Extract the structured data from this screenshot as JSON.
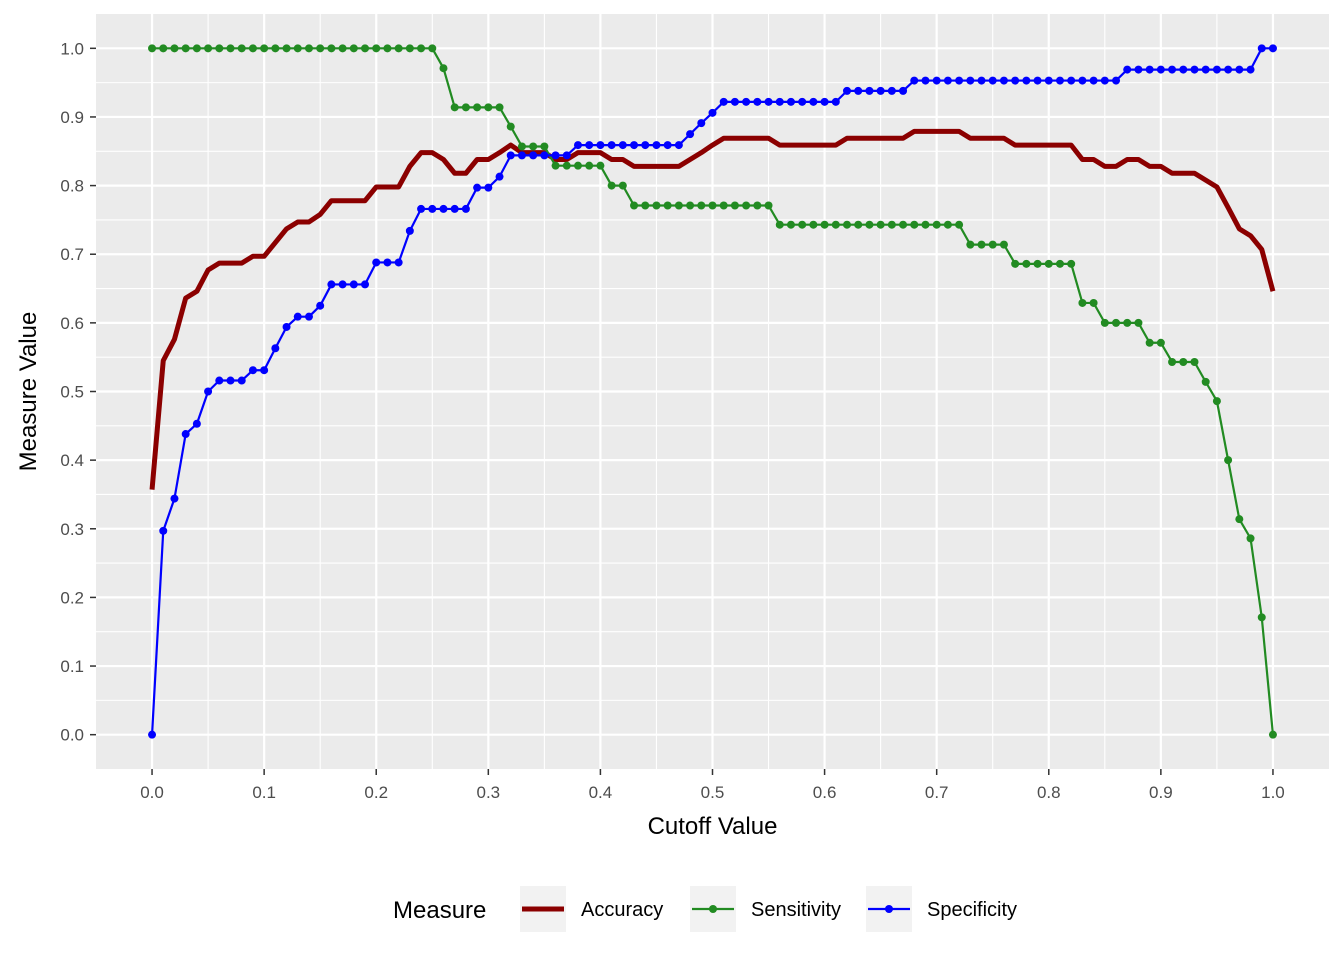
{
  "chart_data": {
    "type": "line",
    "title": "",
    "xlabel": "Cutoff Value",
    "ylabel": "Measure Value",
    "xlim": [
      -0.05,
      1.05
    ],
    "ylim": [
      -0.05,
      1.05
    ],
    "x_ticks": [
      "0.0",
      "0.1",
      "0.2",
      "0.3",
      "0.4",
      "0.5",
      "0.6",
      "0.7",
      "0.8",
      "0.9",
      "1.0"
    ],
    "y_ticks": [
      "0.0",
      "0.1",
      "0.2",
      "0.3",
      "0.4",
      "0.5",
      "0.6",
      "0.7",
      "0.8",
      "0.9",
      "1.0"
    ],
    "grid": true,
    "legend": {
      "title": "Measure",
      "position": "bottom"
    },
    "x": [
      0.0,
      0.01,
      0.02,
      0.03,
      0.04,
      0.05,
      0.06,
      0.07,
      0.08,
      0.09,
      0.1,
      0.11,
      0.12,
      0.13,
      0.14,
      0.15,
      0.16,
      0.17,
      0.18,
      0.19,
      0.2,
      0.21,
      0.22,
      0.23,
      0.24,
      0.25,
      0.26,
      0.27,
      0.28,
      0.29,
      0.3,
      0.31,
      0.32,
      0.33,
      0.34,
      0.35,
      0.36,
      0.37,
      0.38,
      0.39,
      0.4,
      0.41,
      0.42,
      0.43,
      0.44,
      0.45,
      0.46,
      0.47,
      0.48,
      0.49,
      0.5,
      0.51,
      0.52,
      0.53,
      0.54,
      0.55,
      0.56,
      0.57,
      0.58,
      0.59,
      0.6,
      0.61,
      0.62,
      0.63,
      0.64,
      0.65,
      0.66,
      0.67,
      0.68,
      0.69,
      0.7,
      0.71,
      0.72,
      0.73,
      0.74,
      0.75,
      0.76,
      0.77,
      0.78,
      0.79,
      0.8,
      0.81,
      0.82,
      0.83,
      0.84,
      0.85,
      0.86,
      0.87,
      0.88,
      0.89,
      0.9,
      0.91,
      0.92,
      0.93,
      0.94,
      0.95,
      0.96,
      0.97,
      0.98,
      0.99,
      1.0
    ],
    "series": [
      {
        "name": "Accuracy",
        "color": "#8B0000",
        "style": "thick-line",
        "values": [
          0.357,
          0.545,
          0.576,
          0.636,
          0.646,
          0.677,
          0.687,
          0.687,
          0.687,
          0.697,
          0.697,
          0.717,
          0.737,
          0.747,
          0.747,
          0.758,
          0.778,
          0.778,
          0.778,
          0.778,
          0.798,
          0.798,
          0.798,
          0.828,
          0.848,
          0.848,
          0.838,
          0.818,
          0.818,
          0.838,
          0.838,
          0.848,
          0.859,
          0.848,
          0.848,
          0.848,
          0.838,
          0.838,
          0.848,
          0.848,
          0.848,
          0.838,
          0.838,
          0.828,
          0.828,
          0.828,
          0.828,
          0.828,
          0.838,
          0.848,
          0.859,
          0.869,
          0.869,
          0.869,
          0.869,
          0.869,
          0.859,
          0.859,
          0.859,
          0.859,
          0.859,
          0.859,
          0.869,
          0.869,
          0.869,
          0.869,
          0.869,
          0.869,
          0.879,
          0.879,
          0.879,
          0.879,
          0.879,
          0.869,
          0.869,
          0.869,
          0.869,
          0.859,
          0.859,
          0.859,
          0.859,
          0.859,
          0.859,
          0.838,
          0.838,
          0.828,
          0.828,
          0.838,
          0.838,
          0.828,
          0.828,
          0.818,
          0.818,
          0.818,
          0.808,
          0.798,
          0.768,
          0.737,
          0.727,
          0.707,
          0.646
        ]
      },
      {
        "name": "Sensitivity",
        "color": "#228B22",
        "style": "line-points",
        "values": [
          1.0,
          1.0,
          1.0,
          1.0,
          1.0,
          1.0,
          1.0,
          1.0,
          1.0,
          1.0,
          1.0,
          1.0,
          1.0,
          1.0,
          1.0,
          1.0,
          1.0,
          1.0,
          1.0,
          1.0,
          1.0,
          1.0,
          1.0,
          1.0,
          1.0,
          1.0,
          0.971,
          0.914,
          0.914,
          0.914,
          0.914,
          0.914,
          0.886,
          0.857,
          0.857,
          0.857,
          0.829,
          0.829,
          0.829,
          0.829,
          0.829,
          0.8,
          0.8,
          0.771,
          0.771,
          0.771,
          0.771,
          0.771,
          0.771,
          0.771,
          0.771,
          0.771,
          0.771,
          0.771,
          0.771,
          0.771,
          0.743,
          0.743,
          0.743,
          0.743,
          0.743,
          0.743,
          0.743,
          0.743,
          0.743,
          0.743,
          0.743,
          0.743,
          0.743,
          0.743,
          0.743,
          0.743,
          0.743,
          0.714,
          0.714,
          0.714,
          0.714,
          0.686,
          0.686,
          0.686,
          0.686,
          0.686,
          0.686,
          0.629,
          0.629,
          0.6,
          0.6,
          0.6,
          0.6,
          0.571,
          0.571,
          0.543,
          0.543,
          0.543,
          0.514,
          0.486,
          0.4,
          0.314,
          0.286,
          0.171,
          0.0
        ]
      },
      {
        "name": "Specificity",
        "color": "#0000FF",
        "style": "line-points",
        "values": [
          0.0,
          0.297,
          0.344,
          0.438,
          0.453,
          0.5,
          0.516,
          0.516,
          0.516,
          0.531,
          0.531,
          0.563,
          0.594,
          0.609,
          0.609,
          0.625,
          0.656,
          0.656,
          0.656,
          0.656,
          0.688,
          0.688,
          0.688,
          0.734,
          0.766,
          0.766,
          0.766,
          0.766,
          0.766,
          0.797,
          0.797,
          0.813,
          0.844,
          0.844,
          0.844,
          0.844,
          0.844,
          0.844,
          0.859,
          0.859,
          0.859,
          0.859,
          0.859,
          0.859,
          0.859,
          0.859,
          0.859,
          0.859,
          0.875,
          0.891,
          0.906,
          0.922,
          0.922,
          0.922,
          0.922,
          0.922,
          0.922,
          0.922,
          0.922,
          0.922,
          0.922,
          0.922,
          0.938,
          0.938,
          0.938,
          0.938,
          0.938,
          0.938,
          0.953,
          0.953,
          0.953,
          0.953,
          0.953,
          0.953,
          0.953,
          0.953,
          0.953,
          0.953,
          0.953,
          0.953,
          0.953,
          0.953,
          0.953,
          0.953,
          0.953,
          0.953,
          0.953,
          0.969,
          0.969,
          0.969,
          0.969,
          0.969,
          0.969,
          0.969,
          0.969,
          0.969,
          0.969,
          0.969,
          0.969,
          1.0,
          1.0
        ]
      }
    ]
  }
}
